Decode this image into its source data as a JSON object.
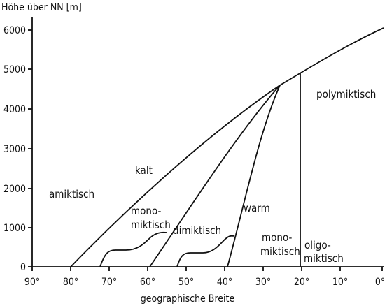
{
  "axes": {
    "ylabel": "Höhe über NN [m]",
    "xlabel": "geographische Breite",
    "yticks": [
      "0",
      "1000",
      "2000",
      "3000",
      "4000",
      "5000",
      "6000"
    ],
    "xticks": [
      "90°",
      "80°",
      "70°",
      "60°",
      "50°",
      "40°",
      "30°",
      "20°",
      "10°",
      "0°"
    ]
  },
  "regions": {
    "amiktisch": "amiktisch",
    "kalt": "kalt",
    "mono_1": "mono-",
    "miktisch_1": "miktisch",
    "dimiktisch": "dimiktisch",
    "warm": "warm",
    "mono_2": "mono-",
    "miktisch_2": "miktisch",
    "oligo": "oligo-",
    "miktisch_3": "miktisch",
    "polymiktisch": "polymiktisch"
  }
}
